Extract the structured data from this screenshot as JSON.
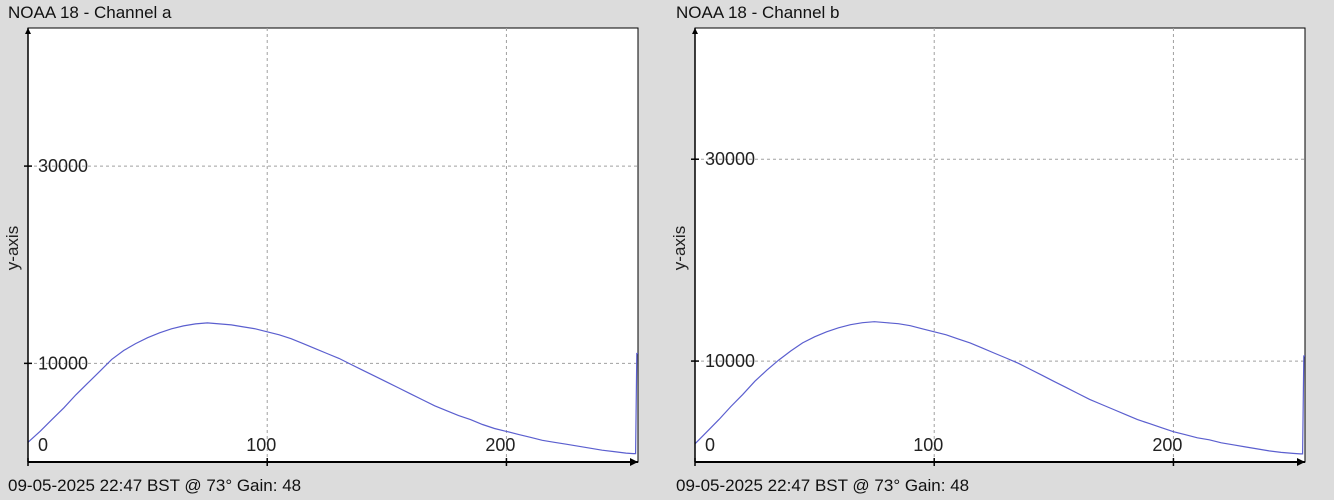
{
  "colors": {
    "background": "#dcdcdc",
    "plot_background": "#ffffff",
    "grid": "#a0a0a0",
    "axis": "#000000",
    "line": "#5b5fcf"
  },
  "chart_data": [
    {
      "type": "line",
      "title": "NOAA 18 - Channel a",
      "ylabel": "y-axis",
      "xlabel": "",
      "footer": "09-05-2025 22:47 BST @ 73° Gain: 48",
      "xlim": [
        0,
        255
      ],
      "ylim": [
        0,
        44000
      ],
      "xticks": [
        "0",
        "100",
        "200"
      ],
      "xtick_values": [
        0,
        100,
        200
      ],
      "yticks": [
        "30000",
        "10000"
      ],
      "ytick_values": [
        30000,
        10000
      ],
      "grid": true,
      "series": [
        {
          "x": [
            0,
            5,
            10,
            15,
            20,
            25,
            30,
            35,
            40,
            45,
            50,
            55,
            60,
            65,
            70,
            75,
            80,
            85,
            90,
            95,
            100,
            105,
            110,
            115,
            120,
            125,
            130,
            135,
            140,
            145,
            150,
            155,
            160,
            165,
            170,
            175,
            180,
            185,
            190,
            195,
            200,
            205,
            210,
            215,
            220,
            225,
            230,
            235,
            240,
            245,
            250,
            253,
            254,
            254.5,
            255
          ],
          "y": [
            2000,
            3100,
            4300,
            5500,
            6800,
            8000,
            9200,
            10400,
            11300,
            12000,
            12600,
            13100,
            13500,
            13800,
            14000,
            14100,
            14000,
            13900,
            13700,
            13500,
            13200,
            12900,
            12500,
            12000,
            11500,
            11000,
            10500,
            9900,
            9300,
            8700,
            8100,
            7500,
            6900,
            6300,
            5700,
            5200,
            4700,
            4300,
            3800,
            3400,
            3100,
            2800,
            2500,
            2200,
            2000,
            1800,
            1600,
            1400,
            1200,
            1050,
            900,
            850,
            850,
            11000,
            11000
          ]
        }
      ]
    },
    {
      "type": "line",
      "title": "NOAA 18 - Channel b",
      "ylabel": "y-axis",
      "xlabel": "",
      "footer": "09-05-2025 22:47 BST @ 73° Gain: 48",
      "xlim": [
        0,
        255
      ],
      "ylim": [
        0,
        43000
      ],
      "xticks": [
        "0",
        "100",
        "200"
      ],
      "xtick_values": [
        0,
        100,
        200
      ],
      "yticks": [
        "30000",
        "10000"
      ],
      "ytick_values": [
        30000,
        10000
      ],
      "grid": true,
      "series": [
        {
          "x": [
            0,
            5,
            10,
            15,
            20,
            25,
            30,
            35,
            40,
            45,
            50,
            55,
            60,
            65,
            70,
            75,
            80,
            85,
            90,
            95,
            100,
            105,
            110,
            115,
            120,
            125,
            130,
            135,
            140,
            145,
            150,
            155,
            160,
            165,
            170,
            175,
            180,
            185,
            190,
            195,
            200,
            205,
            210,
            215,
            220,
            225,
            230,
            235,
            240,
            245,
            250,
            253,
            254,
            254.5,
            255
          ],
          "y": [
            1800,
            3000,
            4200,
            5500,
            6700,
            8000,
            9100,
            10100,
            11000,
            11800,
            12400,
            12900,
            13300,
            13600,
            13800,
            13900,
            13800,
            13700,
            13500,
            13200,
            12900,
            12600,
            12200,
            11800,
            11300,
            10800,
            10300,
            9800,
            9200,
            8600,
            8000,
            7400,
            6800,
            6200,
            5700,
            5200,
            4700,
            4200,
            3800,
            3400,
            3000,
            2700,
            2400,
            2200,
            1900,
            1700,
            1500,
            1300,
            1100,
            950,
            850,
            800,
            800,
            10500,
            10500
          ]
        }
      ]
    }
  ]
}
